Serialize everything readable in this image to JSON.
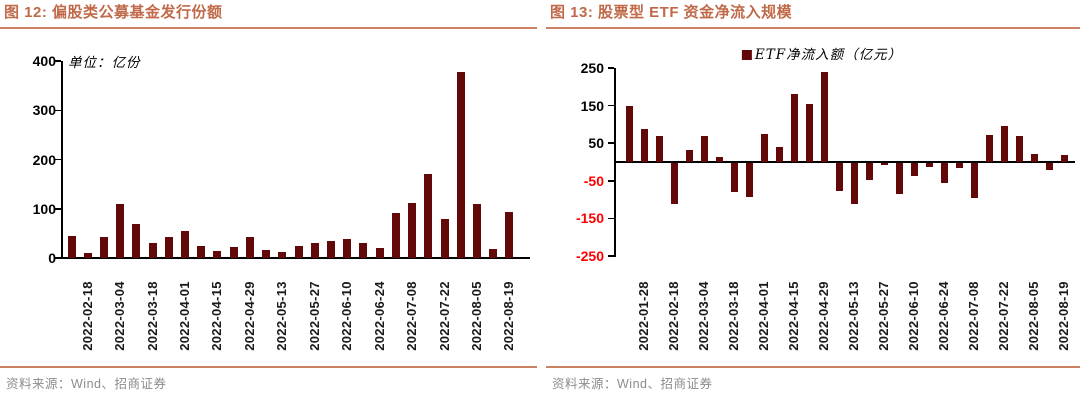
{
  "colors": {
    "bar": "#630808",
    "title_text": "#C06A4A",
    "separator_rule": "#CC8163",
    "negative_tick": "#FF0000",
    "source_text": "#8C8C8C",
    "axis": "#000000"
  },
  "chart_data": [
    {
      "type": "bar",
      "title": "图 12: 偏股类公募基金发行份额",
      "unit_label": "单位：亿份",
      "source": "资料来源：Wind、招商证券",
      "bar_color": "#630808",
      "ylim": [
        0,
        400
      ],
      "yticks": [
        400,
        300,
        200,
        100,
        0
      ],
      "grid": false,
      "values": [
        45,
        10,
        42,
        110,
        70,
        31,
        43,
        55,
        25,
        14,
        22,
        43,
        16,
        13,
        24,
        30,
        34,
        39,
        31,
        20,
        92,
        112,
        170,
        79,
        378,
        110,
        18,
        94
      ],
      "xtick_labels": [
        "2022-02-18",
        "2022-03-04",
        "2022-03-18",
        "2022-04-01",
        "2022-04-15",
        "2022-04-29",
        "2022-05-13",
        "2022-05-27",
        "2022-06-10",
        "2022-06-24",
        "2022-07-08",
        "2022-07-22",
        "2022-08-05",
        "2022-08-19"
      ],
      "xtick_every": 2
    },
    {
      "type": "bar",
      "title": "图 13: 股票型 ETF 资金净流入规模",
      "legend": "ETF净流入额（亿元）",
      "source": "资料来源：Wind、招商证券",
      "bar_color": "#630808",
      "ylim": [
        -250,
        250
      ],
      "yticks": [
        250,
        150,
        50,
        -50,
        -150,
        -250
      ],
      "negative_tick_color": "#FF0000",
      "grid": false,
      "values": [
        150,
        87,
        70,
        -110,
        33,
        70,
        14,
        -78,
        -90,
        75,
        41,
        180,
        155,
        240,
        -74,
        -111,
        -46,
        -6,
        -83,
        -35,
        -10,
        -55,
        -13,
        -93,
        72,
        95,
        68,
        20,
        -20,
        18
      ],
      "xtick_labels": [
        "2022-01-28",
        "2022-02-18",
        "2022-03-04",
        "2022-03-18",
        "2022-04-01",
        "2022-04-15",
        "2022-04-29",
        "2022-05-13",
        "2022-05-27",
        "2022-06-10",
        "2022-06-24",
        "2022-07-08",
        "2022-07-22",
        "2022-08-05",
        "2022-08-19"
      ],
      "xtick_every": 2
    }
  ]
}
